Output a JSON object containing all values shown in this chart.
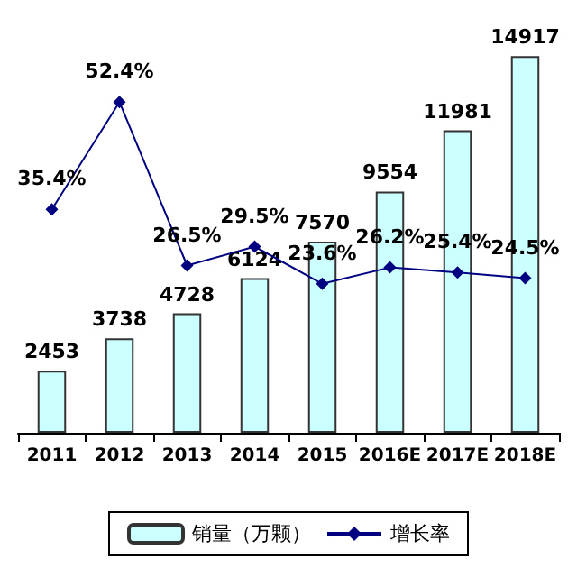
{
  "chart_data": {
    "type": "bar",
    "categories": [
      "2011",
      "2012",
      "2013",
      "2014",
      "2015",
      "2016E",
      "2017E",
      "2018E"
    ],
    "series": [
      {
        "name": "销量（万颗）",
        "type": "bar",
        "color": "#ccffff",
        "values": [
          2453,
          3738,
          4728,
          6124,
          7570,
          9554,
          11981,
          14917
        ]
      },
      {
        "name": "增长率",
        "type": "line",
        "axis": "y2",
        "color": "#000080",
        "values": [
          35.4,
          52.4,
          26.5,
          29.5,
          23.6,
          26.2,
          25.4,
          24.5
        ],
        "value_labels": [
          "35.4%",
          "52.4%",
          "26.5%",
          "29.5%",
          "23.6%",
          "26.2%",
          "25.4%",
          "24.5%"
        ]
      }
    ],
    "data_labels": true,
    "marker": "diamond",
    "legend": "bottom",
    "grid": false,
    "tick_labels": "x"
  }
}
